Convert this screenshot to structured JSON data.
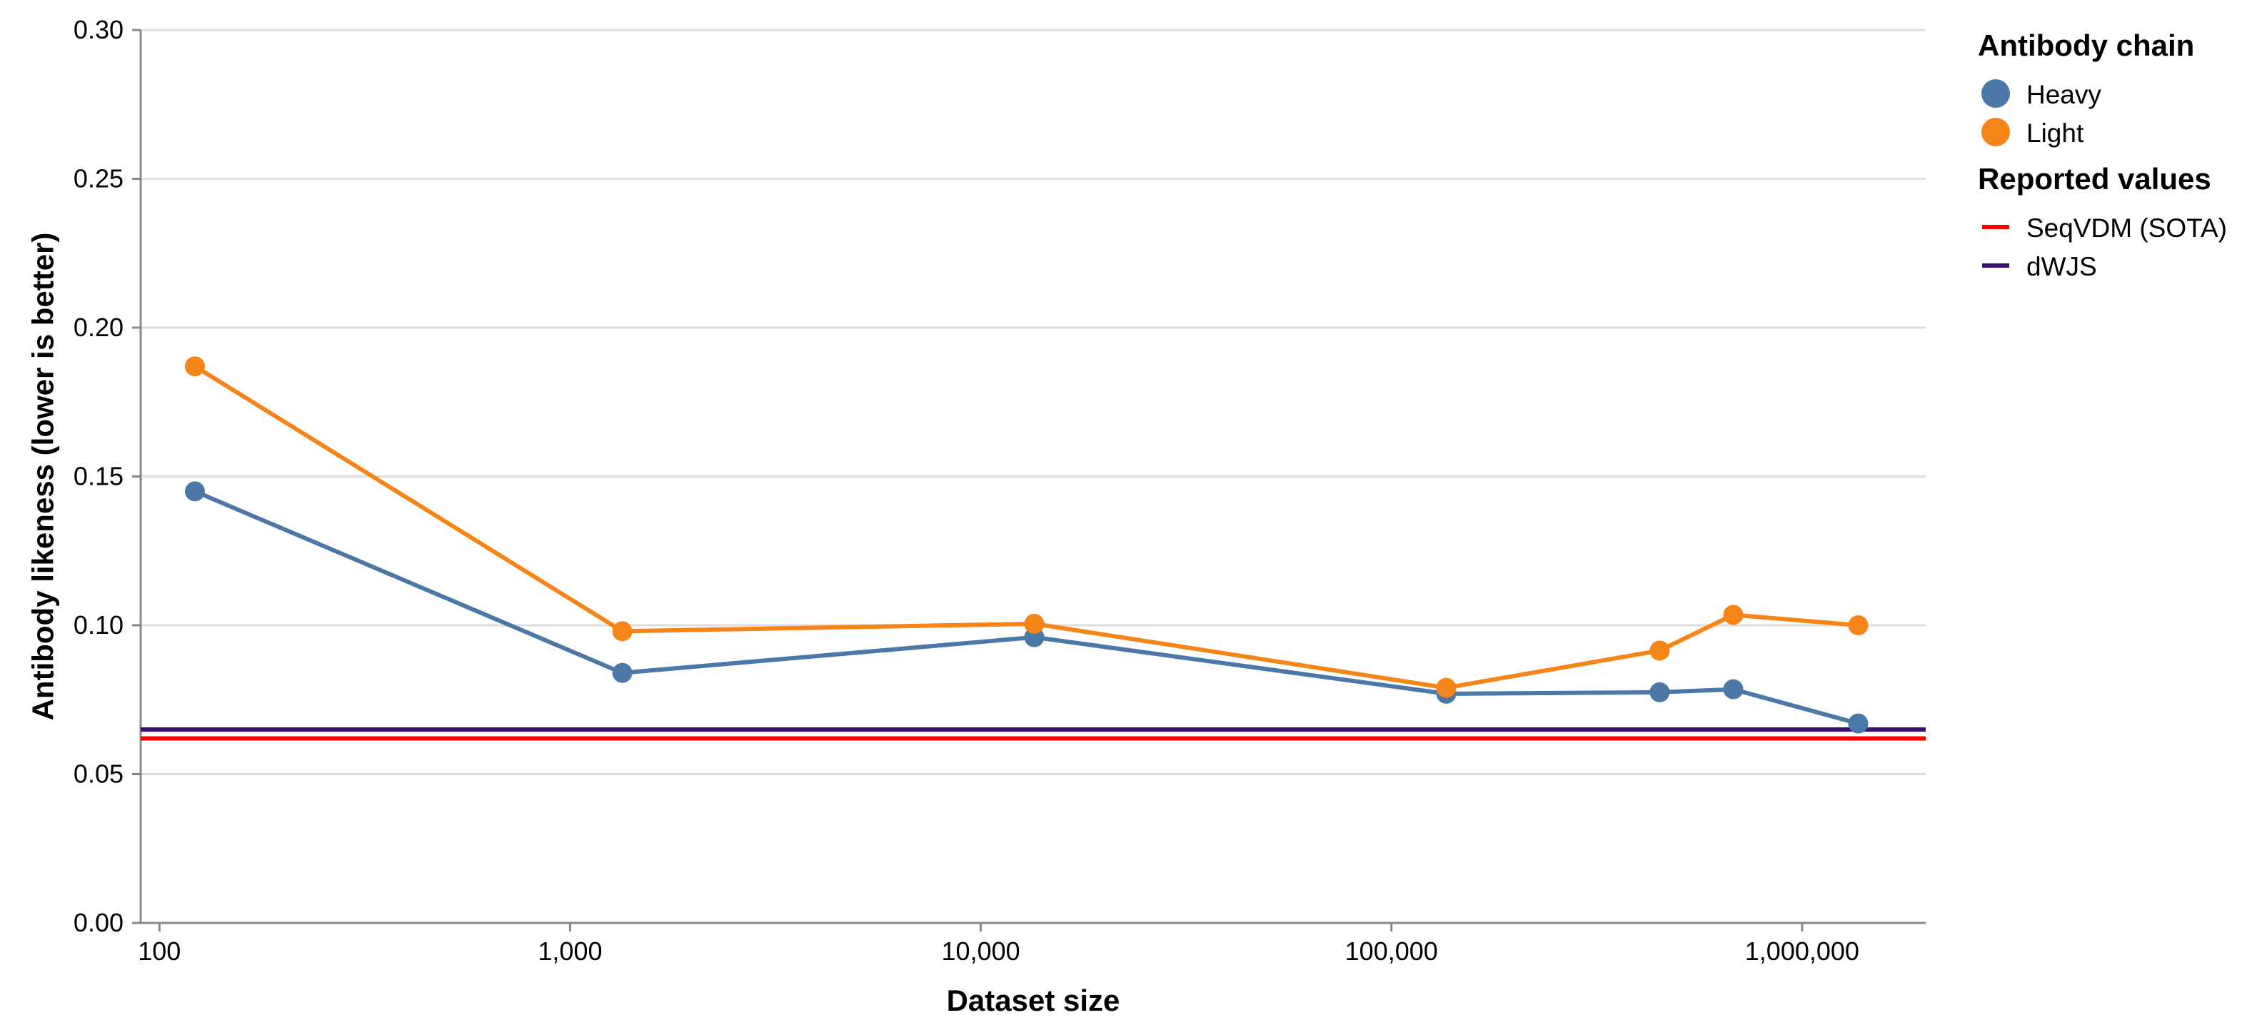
{
  "chart_data": {
    "type": "line",
    "x_scale": "log",
    "xlabel": "Dataset size",
    "ylabel": "Antibody likeness (lower is better)",
    "xlim": [
      90,
      2000000
    ],
    "ylim": [
      0,
      0.3
    ],
    "x_ticks": [
      100,
      1000,
      10000,
      100000,
      1000000
    ],
    "x_tick_labels": [
      "100",
      "1,000",
      "10,000",
      "100,000",
      "1,000,000"
    ],
    "y_ticks": [
      0,
      0.05,
      0.1,
      0.15,
      0.2,
      0.25,
      0.3
    ],
    "y_tick_labels": [
      "0.00",
      "0.05",
      "0.10",
      "0.15",
      "0.20",
      "0.25",
      "0.30"
    ],
    "grid": true,
    "legend_position": "right",
    "series": [
      {
        "name": "Heavy",
        "color": "#4c78a8",
        "x": [
          122,
          1340,
          13500,
          136000,
          450000,
          680000,
          1370000
        ],
        "y": [
          0.145,
          0.084,
          0.096,
          0.077,
          0.0775,
          0.0785,
          0.067
        ]
      },
      {
        "name": "Light",
        "color": "#f58518",
        "x": [
          122,
          1340,
          13500,
          136000,
          450000,
          680000,
          1370000
        ],
        "y": [
          0.187,
          0.098,
          0.1005,
          0.079,
          0.0915,
          0.1035,
          0.1
        ]
      }
    ],
    "reference_lines": [
      {
        "name": "SeqVDM (SOTA)",
        "color": "#ff0000",
        "y": 0.062
      },
      {
        "name": "dWJS",
        "color": "#3b0f70",
        "y": 0.065
      }
    ],
    "legend": [
      {
        "title": "Antibody chain",
        "symbol": "circle",
        "items": [
          {
            "label": "Heavy",
            "color": "#4c78a8"
          },
          {
            "label": "Light",
            "color": "#f58518"
          }
        ]
      },
      {
        "title": "Reported values",
        "symbol": "line",
        "items": [
          {
            "label": "SeqVDM (SOTA)",
            "color": "#ff0000"
          },
          {
            "label": "dWJS",
            "color": "#3b0f70"
          }
        ]
      }
    ]
  }
}
